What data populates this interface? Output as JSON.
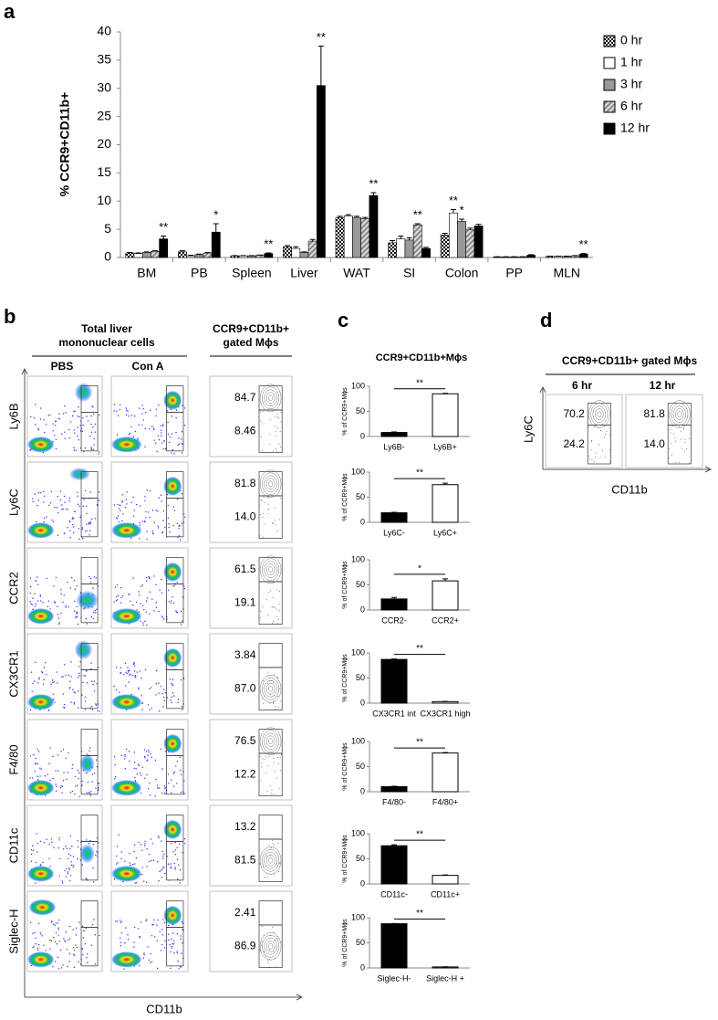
{
  "panel_labels": [
    "a",
    "b",
    "c",
    "d"
  ],
  "chart_data": [
    {
      "type": "grouped-bar",
      "ylabel": "% CCR9+CD11b+",
      "categories": [
        "BM",
        "PB",
        "Spleen",
        "Liver",
        "WAT",
        "SI",
        "Colon",
        "PP",
        "MLN"
      ],
      "ylim": [
        0,
        40
      ],
      "yticks": [
        0,
        5,
        10,
        15,
        20,
        25,
        30,
        35,
        40
      ],
      "grid": false,
      "legend": "right",
      "series": [
        {
          "name": "0 hr",
          "color": "#000000",
          "pattern": "checker",
          "values": [
            0.8,
            1.0,
            0.3,
            1.9,
            7.1,
            2.6,
            4.0,
            0.1,
            0.2
          ],
          "errors": [
            0.1,
            0.2,
            0.05,
            0.2,
            0.2,
            0.4,
            0.3,
            0.05,
            0.05
          ],
          "significance": [
            null,
            null,
            null,
            null,
            null,
            null,
            null,
            null,
            null
          ]
        },
        {
          "name": "1 hr",
          "color": "#ffffff",
          "pattern": null,
          "values": [
            0.7,
            0.3,
            0.3,
            1.6,
            7.4,
            3.3,
            7.9,
            0.1,
            0.2
          ],
          "errors": [
            0.1,
            0.1,
            0.05,
            0.3,
            0.2,
            0.5,
            0.6,
            0.05,
            0.05
          ],
          "significance": [
            null,
            null,
            null,
            null,
            null,
            null,
            "**",
            null,
            null
          ]
        },
        {
          "name": "3 hr",
          "color": "#999999",
          "pattern": null,
          "values": [
            0.9,
            0.5,
            0.3,
            0.9,
            7.1,
            3.1,
            6.4,
            0.1,
            0.2
          ],
          "errors": [
            0.1,
            0.1,
            0.05,
            0.1,
            0.2,
            0.4,
            0.4,
            0.05,
            0.05
          ],
          "significance": [
            null,
            null,
            null,
            null,
            null,
            null,
            "*",
            null,
            null
          ]
        },
        {
          "name": "6 hr",
          "color": "#888888",
          "pattern": "hatch",
          "values": [
            1.1,
            0.8,
            0.4,
            2.9,
            6.9,
            5.8,
            4.9,
            0.1,
            0.3
          ],
          "errors": [
            0.1,
            0.1,
            0.05,
            0.3,
            0.2,
            0.2,
            0.3,
            0.05,
            0.05
          ],
          "significance": [
            null,
            null,
            null,
            null,
            null,
            "**",
            null,
            null,
            null
          ]
        },
        {
          "name": "12 hr",
          "color": "#000000",
          "pattern": null,
          "values": [
            3.3,
            4.5,
            0.7,
            30.5,
            11.0,
            1.6,
            5.6,
            0.4,
            0.6
          ],
          "errors": [
            0.5,
            1.5,
            0.1,
            7.0,
            0.5,
            0.2,
            0.3,
            0.1,
            0.1
          ],
          "significance": [
            "**",
            "*",
            "**",
            "**",
            "**",
            null,
            null,
            null,
            "**"
          ]
        }
      ]
    },
    {
      "type": "bar",
      "title": "CCR9+CD11b+Mϕs",
      "ylabel": "% of CCR9+Mϕs",
      "categories": [
        "Ly6B-",
        "Ly6B+"
      ],
      "values": [
        8,
        85
      ],
      "errors": [
        1,
        1
      ],
      "colors": [
        "#000000",
        "#ffffff"
      ],
      "significance": "**",
      "ylim": [
        0,
        100
      ],
      "yticks": [
        0,
        50,
        100
      ]
    },
    {
      "type": "bar",
      "ylabel": "% of CCR9+Mϕs",
      "categories": [
        "Ly6C-",
        "Ly6C+"
      ],
      "values": [
        19,
        75
      ],
      "errors": [
        1,
        3
      ],
      "colors": [
        "#000000",
        "#ffffff"
      ],
      "significance": "**",
      "ylim": [
        0,
        100
      ],
      "yticks": [
        0,
        50,
        100
      ]
    },
    {
      "type": "bar",
      "ylabel": "% of CCR9+Mϕs",
      "categories": [
        "CCR2-",
        "CCR2+"
      ],
      "values": [
        22,
        58
      ],
      "errors": [
        3,
        4
      ],
      "colors": [
        "#000000",
        "#ffffff"
      ],
      "significance": "*",
      "ylim": [
        0,
        100
      ],
      "yticks": [
        0,
        50,
        100
      ]
    },
    {
      "type": "bar",
      "ylabel": "% of CCR9+Mϕs",
      "categories": [
        "CX3CR1 int",
        "CX3CR1 high"
      ],
      "values": [
        87,
        3
      ],
      "errors": [
        1,
        0.5
      ],
      "colors": [
        "#000000",
        "#ffffff"
      ],
      "significance": "**",
      "ylim": [
        0,
        100
      ],
      "yticks": [
        0,
        50,
        100
      ]
    },
    {
      "type": "bar",
      "ylabel": "% of CCR9+Mϕs",
      "categories": [
        "F4/80-",
        "F4/80+"
      ],
      "values": [
        10,
        77
      ],
      "errors": [
        1,
        1
      ],
      "colors": [
        "#000000",
        "#ffffff"
      ],
      "significance": "**",
      "ylim": [
        0,
        100
      ],
      "yticks": [
        0,
        50,
        100
      ]
    },
    {
      "type": "bar",
      "ylabel": "% of CCR9+Mϕs",
      "categories": [
        "CD11c-",
        "CD11c+"
      ],
      "values": [
        76,
        17
      ],
      "errors": [
        2,
        1
      ],
      "colors": [
        "#000000",
        "#ffffff"
      ],
      "significance": "**",
      "ylim": [
        0,
        100
      ],
      "yticks": [
        0,
        50,
        100
      ]
    },
    {
      "type": "bar",
      "ylabel": "% of CCR9+Mϕs",
      "categories": [
        "Siglec-H-",
        "Siglec-H +"
      ],
      "values": [
        88,
        2
      ],
      "errors": [
        0.5,
        0.3
      ],
      "colors": [
        "#000000",
        "#ffffff"
      ],
      "significance": "**",
      "ylim": [
        0,
        100
      ],
      "yticks": [
        0,
        50,
        100
      ]
    }
  ],
  "flow_b": {
    "header": [
      "Total liver",
      "mononuclear cells"
    ],
    "columns": [
      "PBS",
      "Con A"
    ],
    "gated_header": [
      "CCR9+CD11b+",
      "gated Mϕs"
    ],
    "xlabel": "CD11b",
    "rows": [
      {
        "marker": "Ly6B",
        "top": "84.7",
        "bottom": "8.46"
      },
      {
        "marker": "Ly6C",
        "top": "81.8",
        "bottom": "14.0"
      },
      {
        "marker": "CCR2",
        "top": "61.5",
        "bottom": "19.1"
      },
      {
        "marker": "CX3CR1",
        "top": "3.84",
        "bottom": "87.0"
      },
      {
        "marker": "F4/80",
        "top": "76.5",
        "bottom": "12.2"
      },
      {
        "marker": "CD11c",
        "top": "13.2",
        "bottom": "81.5"
      },
      {
        "marker": "Siglec-H",
        "top": "2.41",
        "bottom": "86.9"
      }
    ]
  },
  "flow_d": {
    "title": "CCR9+CD11b+ gated Mϕs",
    "ylabel": "Ly6C",
    "xlabel": "CD11b",
    "plots": [
      {
        "time": "6 hr",
        "top": "70.2",
        "bottom": "24.2"
      },
      {
        "time": "12 hr",
        "top": "81.8",
        "bottom": "14.0"
      }
    ]
  }
}
